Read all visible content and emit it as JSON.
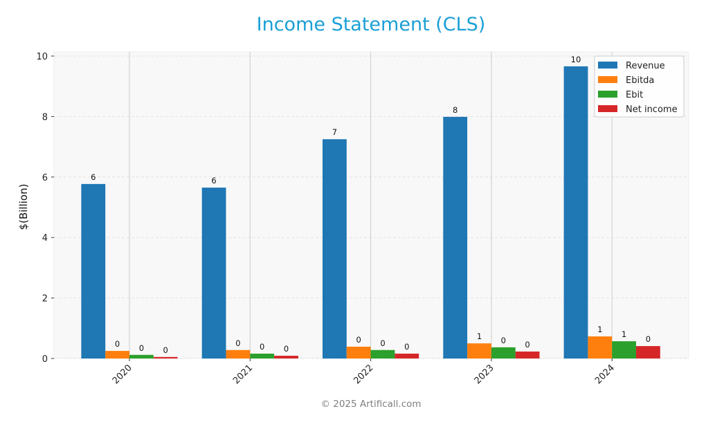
{
  "title": "Income Statement (CLS)",
  "footer": "© 2025 Artificall.com",
  "colors": {
    "title": "#1a9fd6",
    "Revenue": "#1f77b4",
    "Ebitda": "#ff7f0e",
    "Ebit": "#2ca02c",
    "Net income": "#d62728",
    "plot_bg": "#f8f8f8"
  },
  "chart_data": {
    "type": "bar",
    "title": "Income Statement (CLS)",
    "xlabel": "",
    "ylabel": "$(Billion)",
    "categories": [
      "2020",
      "2021",
      "2022",
      "2023",
      "2024"
    ],
    "series": [
      {
        "name": "Revenue",
        "values": [
          5.77,
          5.65,
          7.25,
          7.99,
          9.66
        ],
        "labels": [
          "6",
          "6",
          "7",
          "8",
          "10"
        ]
      },
      {
        "name": "Ebitda",
        "values": [
          0.25,
          0.28,
          0.39,
          0.5,
          0.73
        ],
        "labels": [
          "0",
          "0",
          "0",
          "1",
          "1"
        ]
      },
      {
        "name": "Ebit",
        "values": [
          0.12,
          0.16,
          0.28,
          0.37,
          0.57
        ],
        "labels": [
          "0",
          "0",
          "0",
          "0",
          "1"
        ]
      },
      {
        "name": "Net income",
        "values": [
          0.05,
          0.09,
          0.16,
          0.23,
          0.41
        ],
        "labels": [
          "0",
          "0",
          "0",
          "0",
          "0"
        ]
      }
    ],
    "ylim": [
      0,
      10.1
    ],
    "yticks": [
      0,
      2,
      4,
      6,
      8,
      10
    ],
    "grid": true,
    "legend_position": "upper right",
    "xtick_rotation": 45
  }
}
